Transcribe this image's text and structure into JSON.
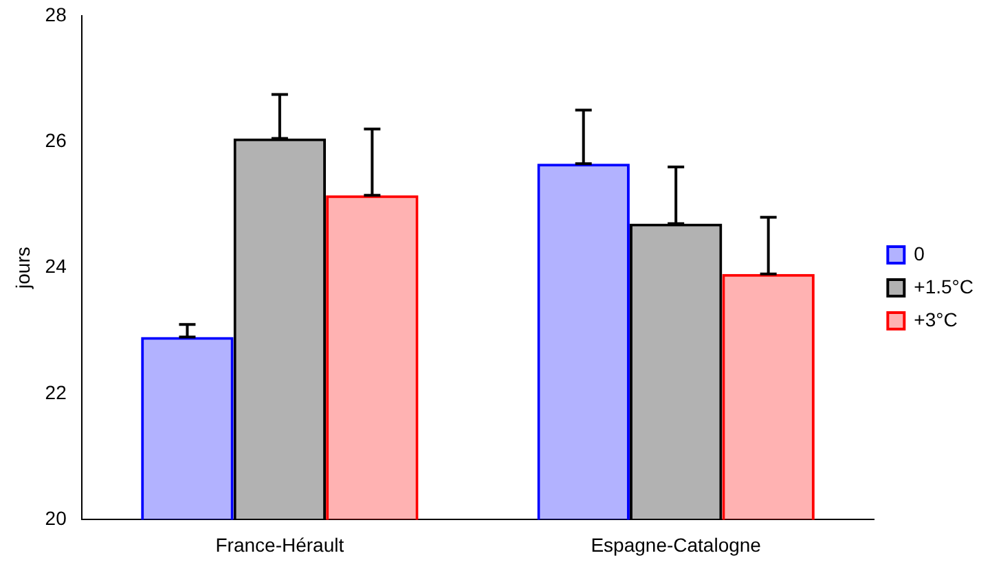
{
  "chart_data": {
    "type": "bar",
    "ylabel": "jours",
    "categories": [
      "France-Hérault",
      "Espagne-Catalogne"
    ],
    "series": [
      {
        "name": "0",
        "color": "#0000ff",
        "values": [
          22.9,
          25.65
        ],
        "errors": [
          [
            22.9,
            23.1
          ],
          [
            25.65,
            26.5
          ]
        ]
      },
      {
        "name": "+1.5°C",
        "color": "#000000",
        "values": [
          26.05,
          24.7
        ],
        "errors": [
          [
            26.05,
            26.75
          ],
          [
            24.7,
            25.6
          ]
        ]
      },
      {
        "name": "+3°C",
        "color": "#ff0000",
        "values": [
          25.15,
          23.9
        ],
        "errors": [
          [
            25.15,
            26.2
          ],
          [
            23.9,
            24.8
          ]
        ]
      }
    ],
    "ylim": [
      20,
      28
    ],
    "yticks": [
      20,
      22,
      24,
      26,
      28
    ],
    "grid": false,
    "legend": "right"
  }
}
